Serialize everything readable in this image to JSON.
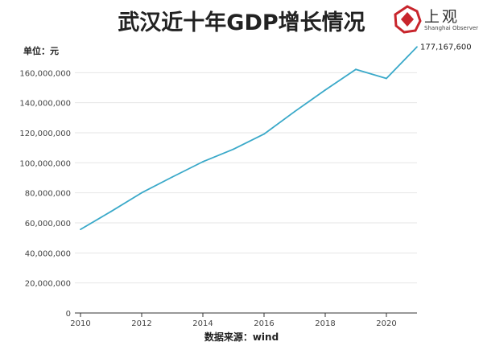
{
  "header": {
    "title": "武汉近十年GDP增长情况",
    "logo_text": "上观",
    "logo_subtext": "Shanghai Observer",
    "unit": "单位：元"
  },
  "footer": {
    "source": "数据来源：wind"
  },
  "colors": {
    "line": "#3aa9c9",
    "grid": "#e6e6e6",
    "axis": "#333333",
    "logo": "#c8252c"
  },
  "chart_data": {
    "type": "line",
    "title": "武汉近十年GDP增长情况",
    "xlabel": "",
    "ylabel": "单位：元",
    "x": [
      2010,
      2011,
      2012,
      2013,
      2014,
      2015,
      2016,
      2017,
      2018,
      2019,
      2020,
      2021
    ],
    "series": [
      {
        "name": "GDP",
        "values": [
          55659000,
          67625000,
          80035000,
          90513000,
          100690000,
          109056000,
          119128000,
          134103000,
          148472000,
          162232000,
          156163000,
          177167600
        ]
      }
    ],
    "end_label": "177,167,600",
    "xticks": [
      2010,
      2012,
      2014,
      2016,
      2018,
      2020
    ],
    "yticks": [
      0,
      20000000,
      40000000,
      60000000,
      80000000,
      100000000,
      120000000,
      140000000,
      160000000
    ],
    "ytick_labels": [
      "0",
      "20,000,000",
      "40,000,000",
      "60,000,000",
      "80,000,000",
      "100,000,000",
      "120,000,000",
      "140,000,000",
      "160,000,000"
    ],
    "xlim": [
      2010,
      2021
    ],
    "ylim": [
      0,
      180000000
    ],
    "grid": true
  }
}
